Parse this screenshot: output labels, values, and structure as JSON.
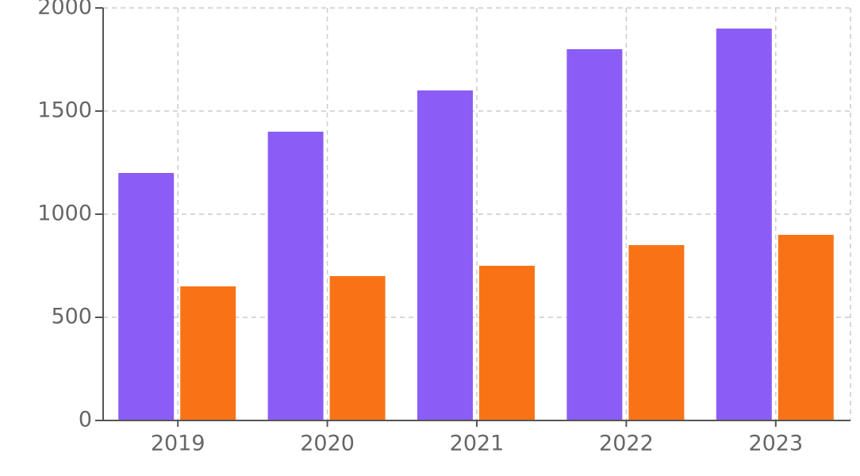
{
  "chart_data": {
    "type": "bar",
    "categories": [
      "2019",
      "2020",
      "2021",
      "2022",
      "2023"
    ],
    "series": [
      {
        "color": "#8b5cf6",
        "values": [
          1200,
          1400,
          1600,
          1800,
          1900
        ]
      },
      {
        "color": "#f97316",
        "values": [
          650,
          700,
          750,
          850,
          900
        ]
      }
    ],
    "ylim": [
      0,
      2000
    ],
    "yticks": [
      0,
      500,
      1000,
      1500,
      2000
    ],
    "grid": true
  }
}
